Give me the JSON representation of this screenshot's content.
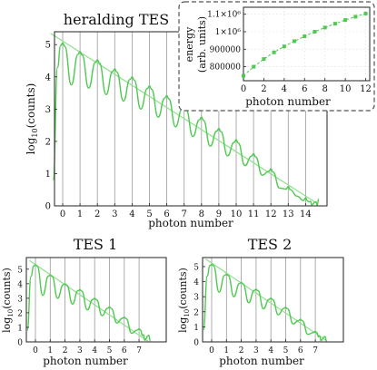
{
  "chart_data": [
    {
      "id": "main",
      "type": "line",
      "title": "heralding TES",
      "xlabel": "photon number",
      "ylabel": "log",
      "ylabel_sub": "10",
      "ylabel_tail": "(counts)",
      "x_ticks": [
        "0",
        "1",
        "2",
        "3",
        "4",
        "5",
        "6",
        "7",
        "8",
        "9",
        "10",
        "11",
        "12",
        "13",
        "14"
      ],
      "y_ticks": [
        "0",
        "1",
        "2",
        "3",
        "4",
        "5"
      ],
      "ylim": [
        0,
        5.4
      ],
      "peaks": [
        0,
        1,
        2,
        3,
        4,
        5,
        6,
        7,
        8,
        9,
        10,
        11,
        12,
        13,
        14
      ],
      "peak_heights": [
        5.05,
        4.78,
        4.53,
        4.25,
        4.0,
        3.72,
        3.42,
        3.08,
        2.75,
        2.4,
        2.05,
        1.62,
        1.15,
        0.6,
        0.25
      ],
      "valley_heights": [
        3.75,
        3.65,
        3.45,
        3.25,
        3.0,
        2.75,
        2.45,
        2.15,
        1.85,
        1.55,
        1.25,
        0.95,
        0.55,
        0.3
      ],
      "fit_line": {
        "x": [
          -0.7,
          14.6
        ],
        "y": [
          5.35,
          0.1
        ]
      }
    },
    {
      "id": "inset",
      "type": "scatter",
      "xlabel": "photon number",
      "ylabel": "energy",
      "ylabel_line2": "(arb. units)",
      "x_ticks": [
        "0",
        "2",
        "4",
        "6",
        "8",
        "10",
        "12"
      ],
      "y_ticks": [
        "800000",
        "900000",
        "1×10⁶",
        "1.1×10⁶"
      ],
      "y_tick_values": [
        800000,
        900000,
        1000000,
        1100000
      ],
      "ylim": [
        720000,
        1140000
      ],
      "xlim": [
        0,
        12.4
      ],
      "x": [
        0,
        1,
        2,
        3,
        4,
        5,
        6,
        7,
        8,
        9,
        10,
        11,
        12
      ],
      "y": [
        748000,
        800000,
        844000,
        882000,
        916000,
        946000,
        974000,
        1000000,
        1024000,
        1046000,
        1067000,
        1086000,
        1104000
      ]
    },
    {
      "id": "tes1",
      "type": "line",
      "title": "TES 1",
      "xlabel": "photon number",
      "ylabel": "log",
      "ylabel_sub": "10",
      "ylabel_tail": "(counts)",
      "x_ticks": [
        "0",
        "1",
        "2",
        "3",
        "4",
        "5",
        "6",
        "7"
      ],
      "y_ticks": [
        "0",
        "1",
        "2",
        "3",
        "4",
        "5"
      ],
      "ylim": [
        0,
        5.8
      ],
      "peaks": [
        0,
        1,
        2,
        3,
        4,
        5,
        6,
        7
      ],
      "peak_heights": [
        5.3,
        4.6,
        4.0,
        3.6,
        3.0,
        2.4,
        1.7,
        0.9
      ],
      "valley_heights": [
        3.2,
        3.0,
        2.6,
        2.2,
        1.8,
        1.3,
        0.6
      ],
      "fit_line": {
        "x": [
          -0.4,
          7.6
        ],
        "y": [
          5.6,
          0.05
        ]
      }
    },
    {
      "id": "tes2",
      "type": "line",
      "title": "TES 2",
      "xlabel": "photon number",
      "ylabel": "log",
      "ylabel_sub": "10",
      "ylabel_tail": "(counts)",
      "x_ticks": [
        "0",
        "1",
        "2",
        "3",
        "4",
        "5",
        "6",
        "7"
      ],
      "y_ticks": [
        "0",
        "1",
        "2",
        "3",
        "4",
        "5"
      ],
      "ylim": [
        0,
        5.6
      ],
      "peaks": [
        0,
        1,
        2,
        3,
        4,
        5,
        6,
        7
      ],
      "peak_heights": [
        5.15,
        4.5,
        3.95,
        3.5,
        2.9,
        2.3,
        1.5,
        0.7
      ],
      "valley_heights": [
        3.3,
        3.0,
        2.6,
        2.2,
        1.8,
        1.2,
        0.5
      ],
      "fit_line": {
        "x": [
          -0.4,
          7.8
        ],
        "y": [
          5.5,
          0.05
        ]
      }
    }
  ]
}
